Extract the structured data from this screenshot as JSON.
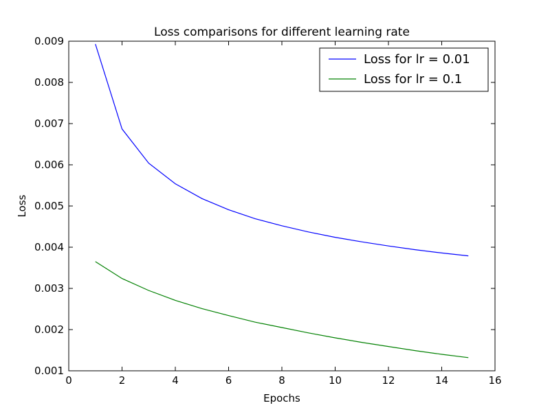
{
  "chart_data": {
    "type": "line",
    "title": "Loss comparisons for different learning rate",
    "xlabel": "Epochs",
    "ylabel": "Loss",
    "xlim": [
      0,
      16
    ],
    "ylim": [
      0.001,
      0.009
    ],
    "x_ticks": [
      0,
      2,
      4,
      6,
      8,
      10,
      12,
      14,
      16
    ],
    "x_tick_labels": [
      "0",
      "2",
      "4",
      "6",
      "8",
      "10",
      "12",
      "14",
      "16"
    ],
    "y_ticks": [
      0.001,
      0.002,
      0.003,
      0.004,
      0.005,
      0.006,
      0.007,
      0.008,
      0.009
    ],
    "y_tick_labels": [
      "0.001",
      "0.002",
      "0.003",
      "0.004",
      "0.005",
      "0.006",
      "0.007",
      "0.008",
      "0.009"
    ],
    "grid": false,
    "legend_position": "top-right",
    "x": [
      1,
      2,
      3,
      4,
      5,
      6,
      7,
      8,
      9,
      10,
      11,
      12,
      13,
      14,
      15
    ],
    "series": [
      {
        "name": "Loss for lr = 0.01",
        "color": "#0000ff",
        "values": [
          0.00893,
          0.00687,
          0.00604,
          0.00554,
          0.00518,
          0.00491,
          0.00469,
          0.00452,
          0.00437,
          0.00424,
          0.00413,
          0.00403,
          0.00394,
          0.00386,
          0.00379
        ]
      },
      {
        "name": "Loss for lr = 0.1",
        "color": "#008000",
        "values": [
          0.00365,
          0.00324,
          0.00295,
          0.00271,
          0.00251,
          0.00234,
          0.00218,
          0.00205,
          0.00192,
          0.0018,
          0.00169,
          0.00159,
          0.00149,
          0.0014,
          0.00132
        ]
      }
    ]
  }
}
